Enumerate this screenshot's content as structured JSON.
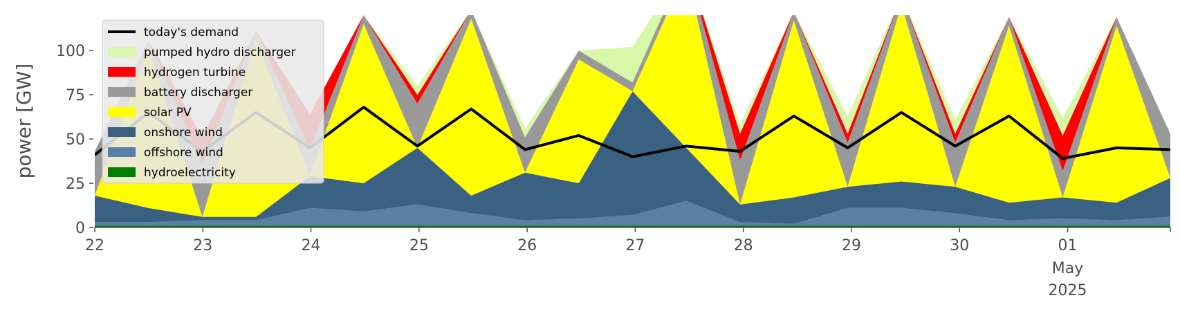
{
  "chart_data": {
    "type": "area",
    "title": "",
    "xlabel": "",
    "ylabel": "power [GW]",
    "ylim": [
      0,
      120
    ],
    "xlim_days": [
      "2025-04-22",
      "2025-05-01"
    ],
    "y_ticks": [
      "0",
      "25",
      "50",
      "75",
      "100"
    ],
    "y_tick_values": [
      0,
      25,
      50,
      75,
      100
    ],
    "x_ticks": [
      "22",
      "23",
      "24",
      "25",
      "26",
      "27",
      "28",
      "29",
      "30",
      "01"
    ],
    "x_tick_dates": [
      "2025-04-22",
      "2025-04-23",
      "2025-04-24",
      "2025-04-25",
      "2025-04-26",
      "2025-04-27",
      "2025-04-28",
      "2025-04-29",
      "2025-04-30",
      "2025-05-01"
    ],
    "x_secondary_label": [
      "May",
      "2025"
    ],
    "grid": false,
    "legend_position": "upper left",
    "colors": {
      "hydroelectricity": "#008000",
      "offshore_wind": "#5b80a5",
      "onshore_wind": "#3a6182",
      "solar_pv": "#ffff00",
      "battery_discharger": "#999999",
      "hydrogen_turbine": "#ff0000",
      "pumped_hydro_discharger": "#d9f7a8",
      "demand": "#000000"
    },
    "legend": [
      {
        "label": "today's demand",
        "key": "demand",
        "kind": "line"
      },
      {
        "label": "pumped hydro discharger",
        "key": "pumped_hydro_discharger",
        "kind": "patch"
      },
      {
        "label": "hydrogen turbine",
        "key": "hydrogen_turbine",
        "kind": "patch"
      },
      {
        "label": "battery discharger",
        "key": "battery_discharger",
        "kind": "patch"
      },
      {
        "label": "solar PV",
        "key": "solar_pv",
        "kind": "patch"
      },
      {
        "label": "onshore wind",
        "key": "onshore_wind",
        "kind": "patch"
      },
      {
        "label": "offshore wind",
        "key": "offshore_wind",
        "kind": "patch"
      },
      {
        "label": "hydroelectricity",
        "key": "hydroelectricity",
        "kind": "patch"
      }
    ],
    "x": [
      "04-22 00h",
      "04-22 12h",
      "04-23 00h",
      "04-23 12h",
      "04-24 00h",
      "04-24 12h",
      "04-25 00h",
      "04-25 12h",
      "04-26 00h",
      "04-26 12h",
      "04-27 00h",
      "04-27 12h",
      "04-28 00h",
      "04-28 12h",
      "04-29 00h",
      "04-29 12h",
      "04-30 00h",
      "04-30 12h",
      "05-01 00h",
      "05-01 12h",
      "05-01 22h"
    ],
    "series": [
      {
        "name": "hydroelectricity",
        "key": "hydroelectricity",
        "values": [
          1,
          1,
          1,
          1,
          1,
          1,
          1,
          1,
          1,
          1,
          1,
          1,
          1,
          1,
          1,
          1,
          1,
          1,
          1,
          1,
          1
        ]
      },
      {
        "name": "offshore wind",
        "key": "offshore_wind",
        "values": [
          2,
          2,
          3,
          3,
          10,
          8,
          12,
          7,
          3,
          4,
          6,
          14,
          2,
          1,
          10,
          10,
          7,
          3,
          4,
          3,
          5
        ]
      },
      {
        "name": "onshore wind",
        "key": "onshore_wind",
        "values": [
          15,
          8,
          2,
          2,
          18,
          16,
          32,
          10,
          27,
          20,
          70,
          30,
          10,
          15,
          12,
          15,
          15,
          10,
          12,
          10,
          22
        ]
      },
      {
        "name": "solar PV",
        "key": "solar_pv",
        "values": [
          0,
          90,
          0,
          100,
          0,
          90,
          0,
          100,
          0,
          70,
          0,
          100,
          0,
          100,
          0,
          100,
          0,
          100,
          0,
          100,
          0
        ]
      },
      {
        "name": "battery discharger",
        "key": "battery_discharger",
        "values": [
          25,
          5,
          30,
          5,
          15,
          5,
          25,
          5,
          20,
          5,
          5,
          5,
          25,
          5,
          25,
          5,
          25,
          5,
          15,
          5,
          25
        ]
      },
      {
        "name": "hydrogen turbine",
        "key": "hydrogen_turbine",
        "values": [
          0,
          0,
          15,
          0,
          20,
          0,
          5,
          0,
          0,
          0,
          0,
          0,
          15,
          0,
          5,
          0,
          5,
          0,
          20,
          0,
          0
        ]
      },
      {
        "name": "pumped hydro discharger",
        "key": "pumped_hydro_discharger",
        "values": [
          0,
          0,
          0,
          0,
          0,
          0,
          5,
          0,
          5,
          0,
          20,
          0,
          5,
          0,
          10,
          0,
          8,
          0,
          10,
          0,
          0
        ]
      }
    ],
    "demand": {
      "name": "today's demand",
      "values": [
        41,
        65,
        43,
        65,
        45,
        68,
        46,
        67,
        44,
        52,
        40,
        46,
        43,
        63,
        45,
        65,
        46,
        63,
        39,
        45,
        44
      ]
    }
  }
}
